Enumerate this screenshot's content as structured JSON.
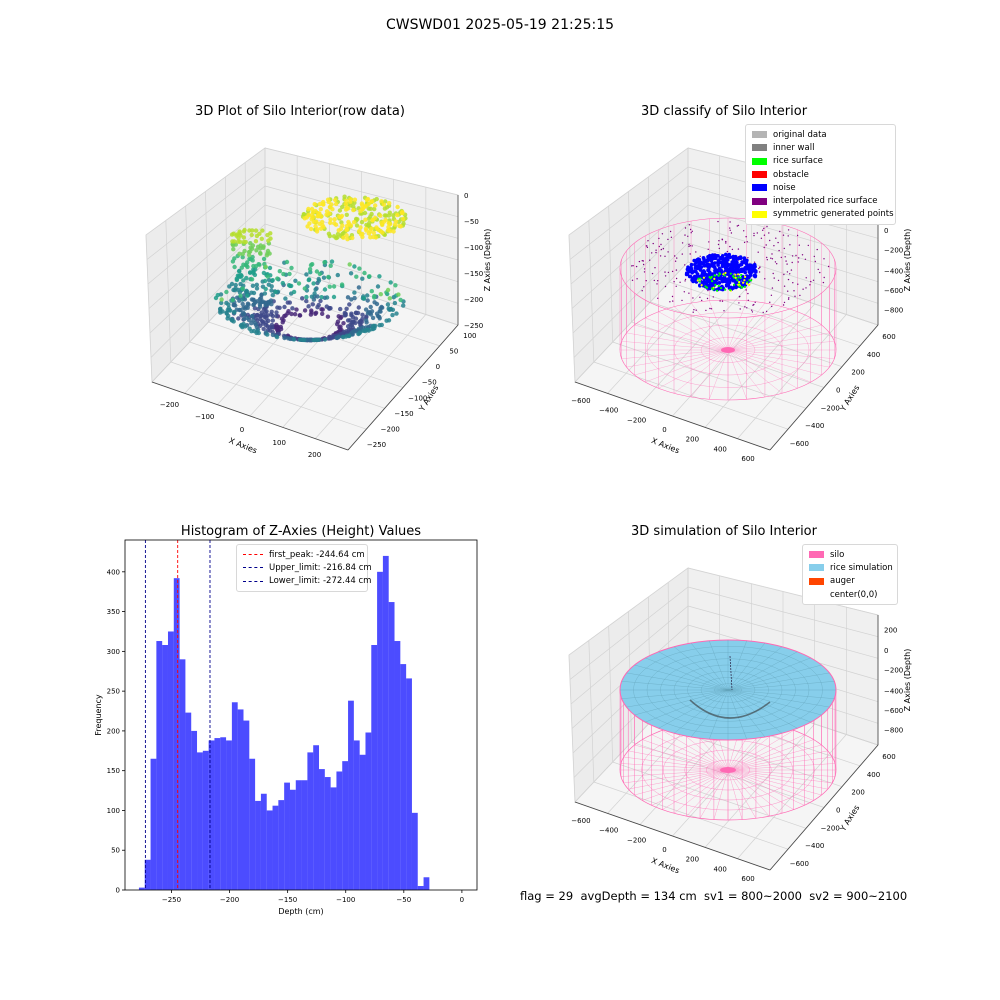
{
  "suptitle": "CWSWD01 2025-05-19 21:25:15",
  "plot1": {
    "title": "3D Plot of Silo Interior(row data)",
    "xlabel": "X Axies",
    "ylabel": "Y Axies",
    "zlabel": "Z Axies (Depth)",
    "xticks": [
      "−200",
      "−100",
      "0",
      "100",
      "200"
    ],
    "yticks": [
      "100",
      "50",
      "0",
      "−50",
      "−100",
      "−150",
      "−200",
      "−250"
    ],
    "zticks": [
      "0",
      "−50",
      "−100",
      "−150",
      "−200",
      "−250"
    ]
  },
  "plot2": {
    "title": "3D classify of Silo Interior",
    "xlabel": "X Axies",
    "ylabel": "Y Axies",
    "zlabel": "Z Axies (Depth)",
    "xticks": [
      "−600",
      "−400",
      "−200",
      "0",
      "200",
      "400",
      "600"
    ],
    "yticks": [
      "600",
      "400",
      "200",
      "0",
      "−200",
      "−400",
      "−600"
    ],
    "zticks": [
      "0",
      "−200",
      "−400",
      "−600",
      "−800"
    ],
    "legend": [
      {
        "label": "original data",
        "color": "#b4b4b4"
      },
      {
        "label": "inner wall",
        "color": "#808080"
      },
      {
        "label": "rice surface",
        "color": "#00ff00"
      },
      {
        "label": "obstacle",
        "color": "#ff0000"
      },
      {
        "label": "noise",
        "color": "#0000ff"
      },
      {
        "label": "interpolated rice surface",
        "color": "#800080"
      },
      {
        "label": "symmetric generated points",
        "color": "#ffff00"
      }
    ]
  },
  "plot4": {
    "title": "3D simulation of Silo Interior",
    "xlabel": "X Axies",
    "ylabel": "Y Axies",
    "zlabel": "Z Axies (Depth)",
    "xticks": [
      "−600",
      "−400",
      "−200",
      "0",
      "200",
      "400",
      "600"
    ],
    "yticks": [
      "600",
      "400",
      "200",
      "0",
      "−200",
      "−400",
      "−600"
    ],
    "zticks": [
      "200",
      "0",
      "−200",
      "−400",
      "−600",
      "−800"
    ],
    "legend": [
      {
        "label": "silo",
        "color": "#ff69b4"
      },
      {
        "label": "rice simulation",
        "color": "#87ceeb"
      },
      {
        "label": "auger",
        "color": "#ff4500"
      },
      {
        "label": "center(0,0)",
        "color": "#ffffff"
      }
    ]
  },
  "status_text": "flag = 29  avgDepth = 134 cm  sv1 = 800~2000  sv2 = 900~2100",
  "chart_data": [
    {
      "type": "scatter",
      "title": "3D Plot of Silo Interior(row data)",
      "xlabel": "X Axies",
      "ylabel": "Y Axies",
      "zlabel": "Z Axies (Depth)",
      "xlim": [
        -250,
        250
      ],
      "ylim": [
        -250,
        120
      ],
      "zlim": [
        -280,
        0
      ],
      "colormap": "viridis",
      "grid": true
    },
    {
      "type": "scatter",
      "title": "3D classify of Silo Interior",
      "xlabel": "X Axies",
      "ylabel": "Y Axies",
      "zlabel": "Z Axies (Depth)",
      "xlim": [
        -650,
        650
      ],
      "ylim": [
        -650,
        650
      ],
      "zlim": [
        -900,
        50
      ],
      "legend_position": "top-right",
      "grid": true
    },
    {
      "type": "bar",
      "title": "Histogram of Z-Axies (Height) Values",
      "xlabel": "Depth (cm)",
      "ylabel": "Frequency",
      "xlim": [
        -290,
        13
      ],
      "ylim": [
        0,
        440
      ],
      "xticks": [
        -250,
        -200,
        -150,
        -100,
        -50,
        0
      ],
      "yticks": [
        0,
        50,
        100,
        150,
        200,
        250,
        300,
        350,
        400
      ],
      "bin_start": -278,
      "bin_width": 5,
      "values": [
        3,
        38,
        165,
        313,
        308,
        325,
        392,
        290,
        223,
        200,
        173,
        175,
        188,
        191,
        192,
        188,
        236,
        227,
        213,
        165,
        112,
        121,
        100,
        106,
        113,
        135,
        126,
        138,
        138,
        173,
        182,
        152,
        142,
        129,
        149,
        162,
        238,
        188,
        170,
        198,
        308,
        400,
        420,
        362,
        313,
        284,
        266,
        97,
        5,
        16
      ],
      "bar_color": "#0000ff",
      "vlines": [
        {
          "label": "first_peak: -244.64 cm",
          "x": -244.64,
          "color": "#ff0000"
        },
        {
          "label": "Upper_limit: -216.84 cm",
          "x": -216.84,
          "color": "#00008b"
        },
        {
          "label": "Lower_limit: -272.44 cm",
          "x": -272.44,
          "color": "#00008b"
        }
      ],
      "legend_position": "top-center",
      "grid": false
    },
    {
      "type": "area",
      "title": "3D simulation of Silo Interior",
      "xlabel": "X Axies",
      "ylabel": "Y Axies",
      "zlabel": "Z Axies (Depth)",
      "xlim": [
        -650,
        650
      ],
      "ylim": [
        -650,
        650
      ],
      "zlim": [
        -900,
        300
      ],
      "legend_position": "top-right",
      "grid": true
    }
  ]
}
